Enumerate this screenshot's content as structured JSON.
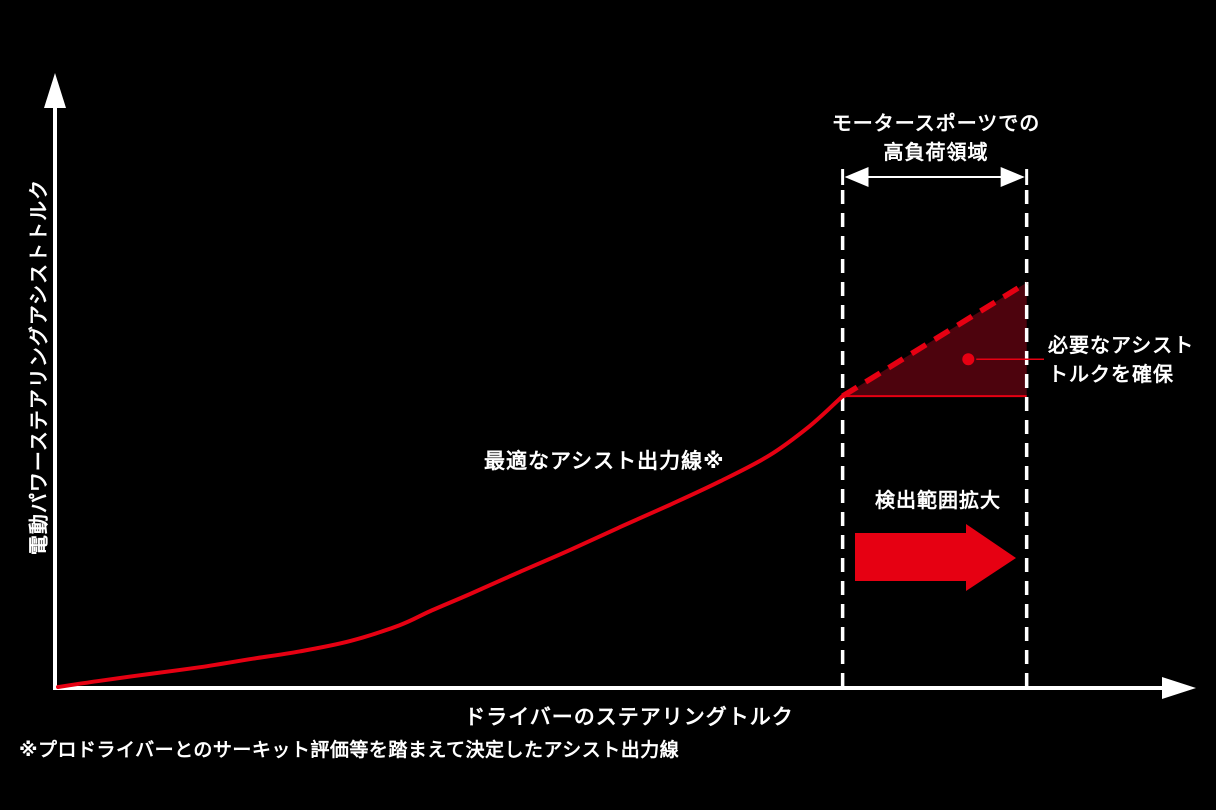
{
  "colors": {
    "background": "#000000",
    "axis": "#ffffff",
    "text": "#ffffff",
    "accent_red": "#e60012",
    "region_fill": "#4d030d"
  },
  "labels": {
    "y_axis": "電動パワーステアリングアシストトルク",
    "x_axis": "ドライバーのステアリングトルク",
    "curve": "最適なアシスト出力線※",
    "high_load_line1": "モータースポーツでの",
    "high_load_line2": "高負荷領域",
    "detection": "検出範囲拡大",
    "assist_note_line1": "必要なアシスト",
    "assist_note_line2": "トルクを確保",
    "footnote": "※プロドライバーとのサーキット評価等を踏まえて決定したアシスト出力線"
  },
  "chart_data": {
    "type": "line",
    "title": "",
    "xlabel": "ドライバーのステアリングトルク",
    "ylabel": "電動パワーステアリングアシストトルク",
    "axis_numeric_ticks": false,
    "x_range_pct": [
      0,
      100
    ],
    "y_range_pct": [
      0,
      100
    ],
    "grid": false,
    "legend": false,
    "series": [
      {
        "name": "最適なアシスト出力線※",
        "style": "solid",
        "color": "#e60012",
        "points_pct": [
          [
            0,
            0
          ],
          [
            3.8,
            1.1
          ],
          [
            8.3,
            2.3
          ],
          [
            12.9,
            3.5
          ],
          [
            17.4,
            4.9
          ],
          [
            22.0,
            6.3
          ],
          [
            26.5,
            8.1
          ],
          [
            31.0,
            10.9
          ],
          [
            33.8,
            13.4
          ],
          [
            37.4,
            16.4
          ],
          [
            41.9,
            20.3
          ],
          [
            46.5,
            24.2
          ],
          [
            51.0,
            28.2
          ],
          [
            55.5,
            32.1
          ],
          [
            60.1,
            36.3
          ],
          [
            64.6,
            40.9
          ],
          [
            68.2,
            46.0
          ],
          [
            71.2,
            51.3
          ]
        ]
      },
      {
        "name": "",
        "style": "dashed",
        "color": "#e60012",
        "points_pct": [
          [
            71.2,
            51.3
          ],
          [
            87.9,
            71.3
          ]
        ]
      }
    ],
    "high_load_region": {
      "label": "モータースポーツでの高負荷領域",
      "x_start_pct": 71.2,
      "x_end_pct": 87.9
    },
    "shaded_region": {
      "label": "必要なアシストトルクを確保",
      "fill": "#4d030d",
      "vertices_pct": [
        [
          71.2,
          51.3
        ],
        [
          87.9,
          71.3
        ],
        [
          87.9,
          51.3
        ]
      ],
      "marker_pct": [
        82.6,
        57.8
      ]
    },
    "annotations": [
      {
        "text": "最適なアシスト出力線※"
      },
      {
        "text": "検出範囲拡大"
      },
      {
        "text": "必要なアシストトルクを確保"
      },
      {
        "text": "モータースポーツでの高負荷領域"
      },
      {
        "text": "※プロドライバーとのサーキット評価等を踏まえて決定したアシスト出力線"
      }
    ]
  }
}
